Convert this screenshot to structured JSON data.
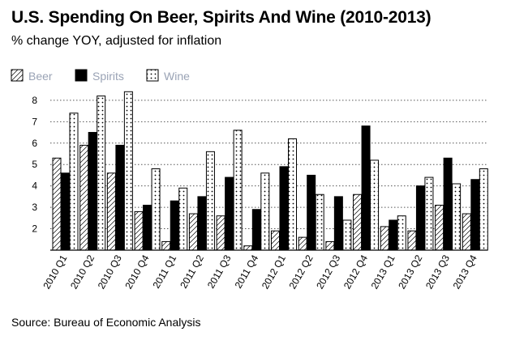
{
  "chart_data": {
    "type": "bar",
    "title": "U.S. Spending On Beer, Spirits And Wine (2010-2013)",
    "subtitle": "% change YOY, adjusted for inflation",
    "source": "Source: Bureau of Economic Analysis",
    "categories": [
      "2010 Q1",
      "2010 Q2",
      "2010 Q3",
      "2010 Q4",
      "2011 Q1",
      "2011 Q2",
      "2011 Q3",
      "2011 Q4",
      "2012 Q1",
      "2012 Q2",
      "2012 Q3",
      "2012 Q4",
      "2013 Q1",
      "2013 Q2",
      "2013 Q3",
      "2013 Q4"
    ],
    "series": [
      {
        "name": "Beer",
        "pattern": "diagonal-hatch",
        "values": [
          5.3,
          5.9,
          4.6,
          2.8,
          1.4,
          2.7,
          2.6,
          1.2,
          1.9,
          1.6,
          1.4,
          3.6,
          2.1,
          1.9,
          3.1,
          2.7
        ]
      },
      {
        "name": "Spirits",
        "pattern": "solid-black",
        "values": [
          4.6,
          6.5,
          5.9,
          3.1,
          3.3,
          3.5,
          4.4,
          2.9,
          4.9,
          4.5,
          3.5,
          6.8,
          2.4,
          4.0,
          5.3,
          4.3
        ]
      },
      {
        "name": "Wine",
        "pattern": "dots",
        "values": [
          7.4,
          8.2,
          8.4,
          4.8,
          3.9,
          5.6,
          6.6,
          4.6,
          6.2,
          3.6,
          2.4,
          5.2,
          2.6,
          4.4,
          4.1,
          4.8
        ]
      }
    ],
    "yticks": [
      2,
      3,
      4,
      5,
      6,
      7,
      8
    ],
    "ylim": [
      1.0,
      8.6
    ],
    "grid": "horizontal-dotted",
    "legend": "top-left",
    "colors": {
      "bars": "#000000",
      "fill": "#ffffff",
      "legend_text": "#9aa3b5"
    }
  }
}
